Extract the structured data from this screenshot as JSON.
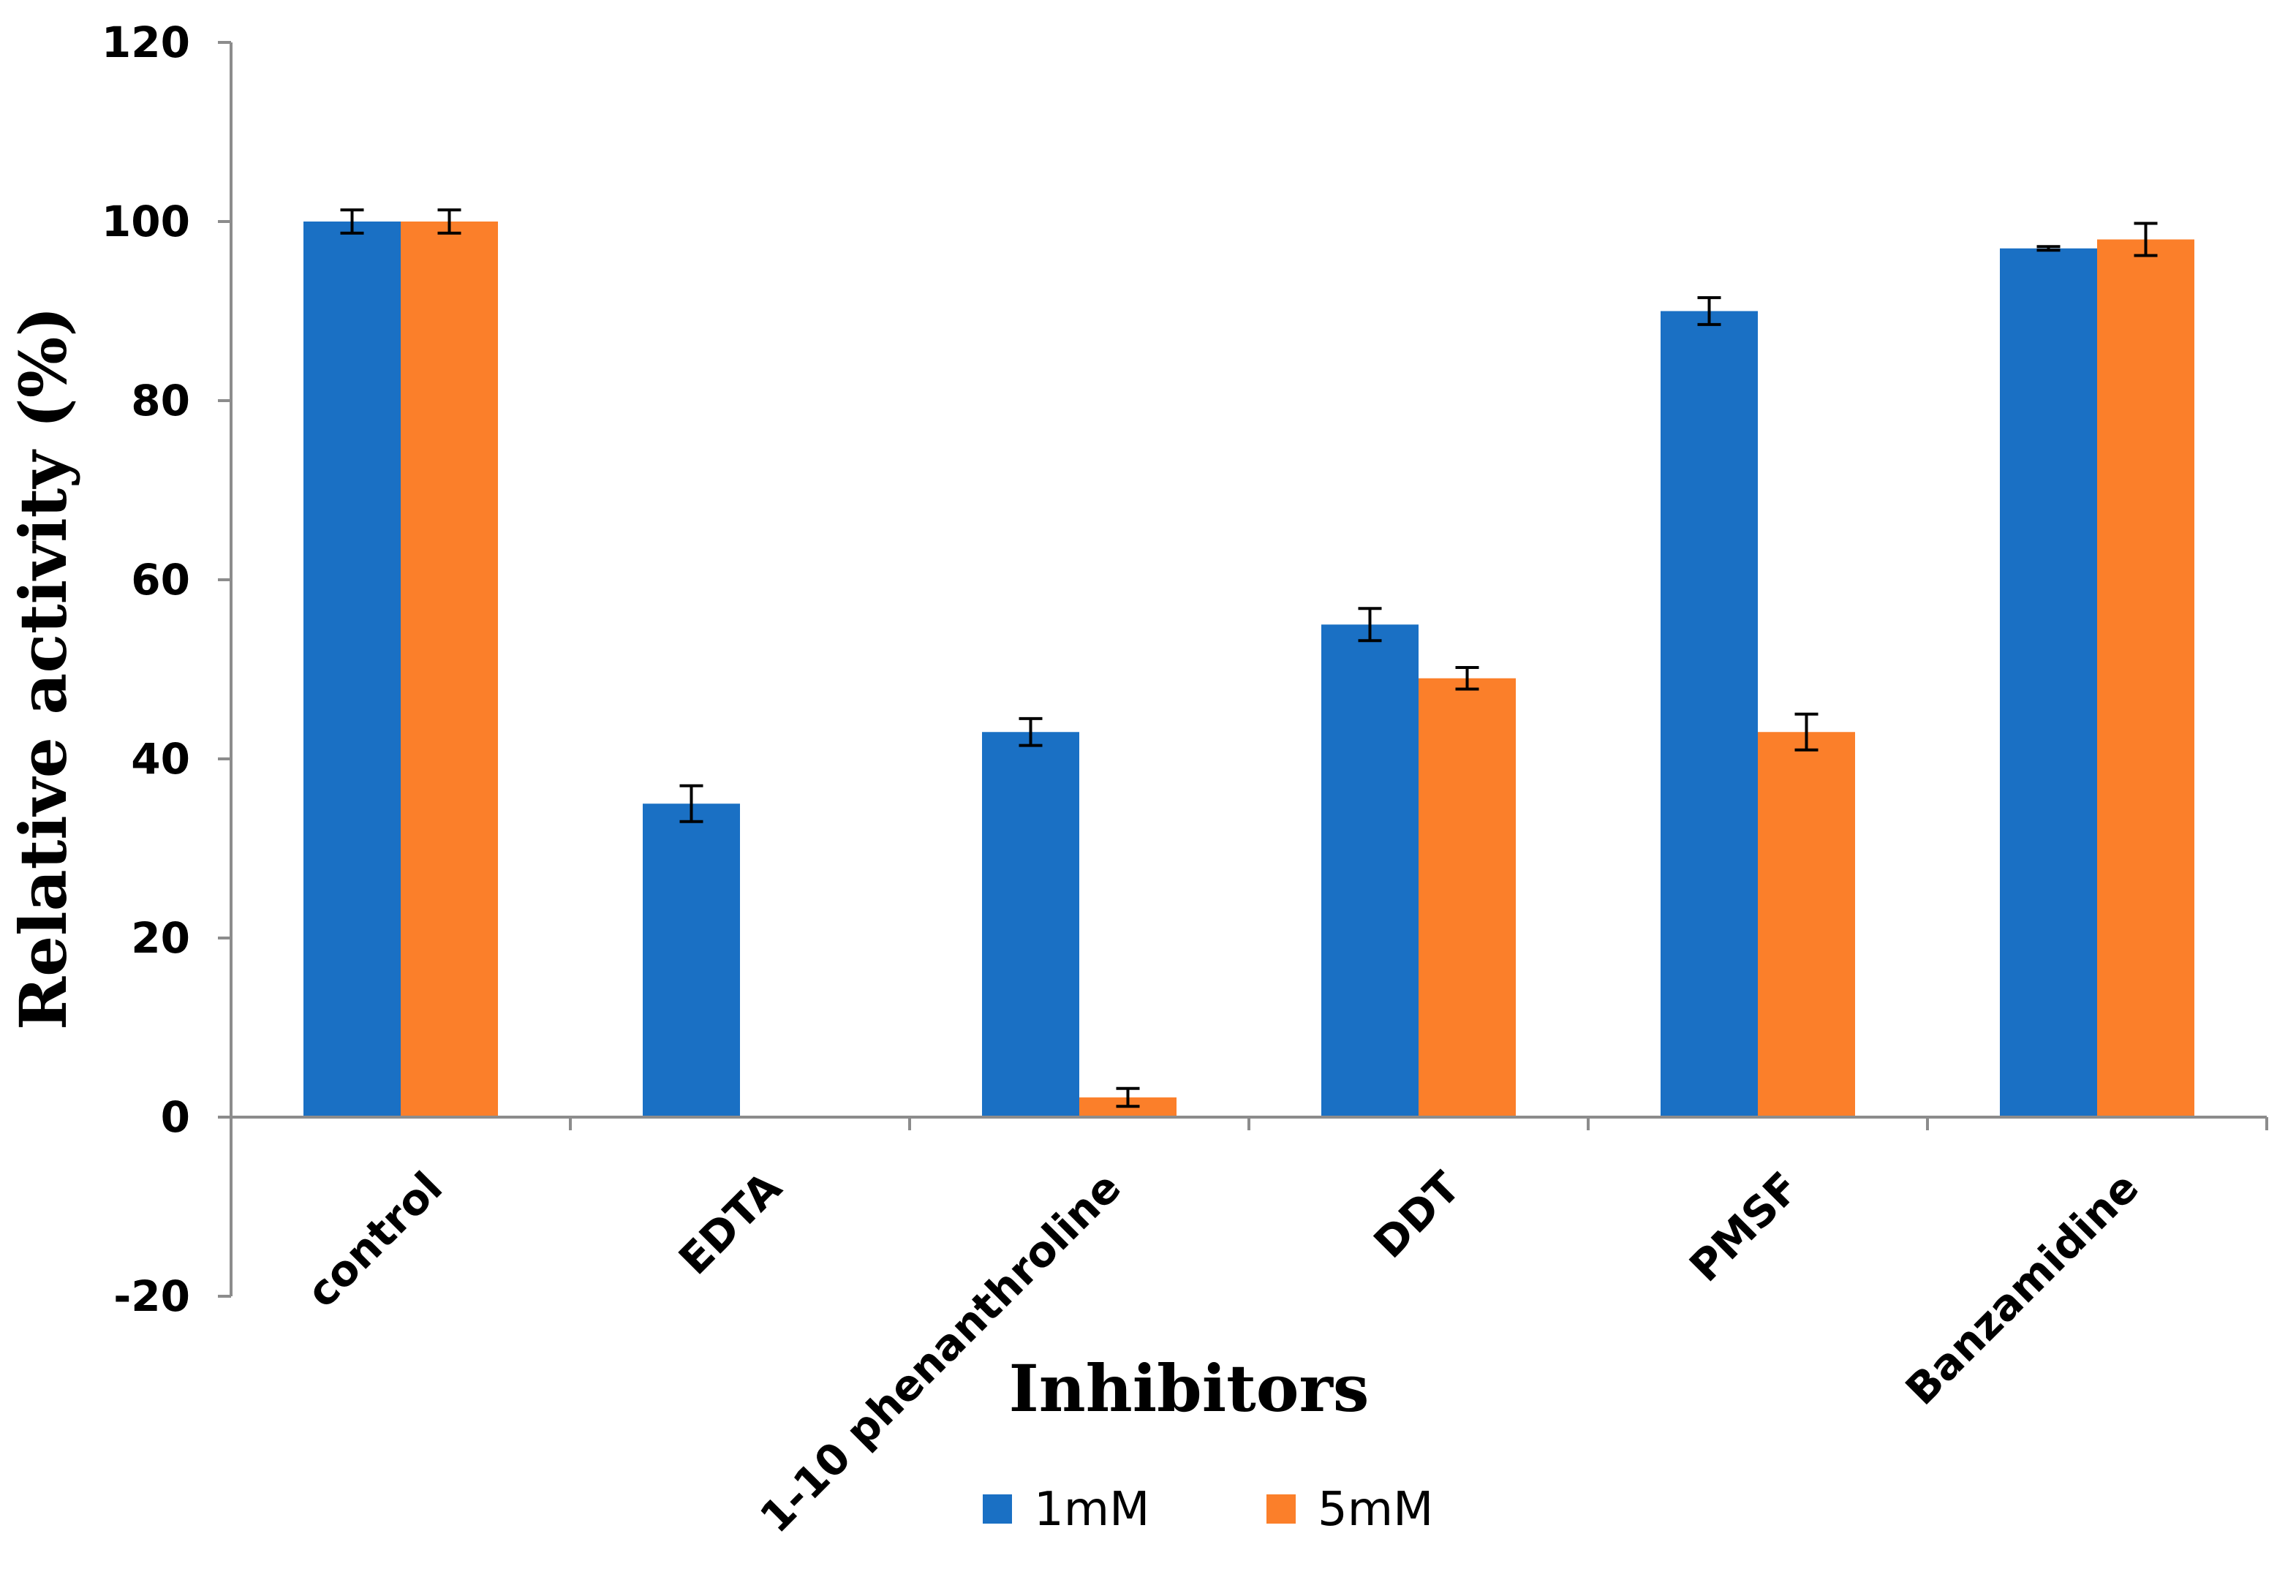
{
  "chart_data": {
    "type": "bar",
    "title": "",
    "xlabel": "Inhibitors",
    "ylabel": "Relative activity (%)",
    "ylim": [
      -20,
      120
    ],
    "yticks": [
      -20,
      0,
      20,
      40,
      60,
      80,
      100,
      120
    ],
    "grid": false,
    "legend_position": "bottom",
    "categories": [
      "control",
      "EDTA",
      "1-10 phenanthroline",
      "DDT",
      "PMSF",
      "Banzamidine"
    ],
    "series": [
      {
        "name": "1mM",
        "color": "#1a70c4",
        "values": [
          100,
          35,
          43,
          55,
          90,
          97
        ],
        "errors": [
          1.3,
          2.0,
          1.5,
          1.8,
          1.5,
          0.2
        ]
      },
      {
        "name": "5mM",
        "color": "#fb7f2a",
        "values": [
          100,
          0,
          2.2,
          49,
          43,
          98
        ],
        "errors": [
          1.3,
          0,
          1.0,
          1.2,
          2.0,
          1.8
        ]
      }
    ]
  }
}
